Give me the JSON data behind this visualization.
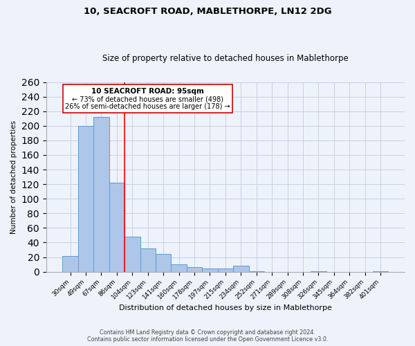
{
  "title": "10, SEACROFT ROAD, MABLETHORPE, LN12 2DG",
  "subtitle": "Size of property relative to detached houses in Mablethorpe",
  "xlabel": "Distribution of detached houses by size in Mablethorpe",
  "ylabel": "Number of detached properties",
  "categories": [
    "30sqm",
    "49sqm",
    "67sqm",
    "86sqm",
    "104sqm",
    "123sqm",
    "141sqm",
    "160sqm",
    "178sqm",
    "197sqm",
    "215sqm",
    "234sqm",
    "252sqm",
    "271sqm",
    "289sqm",
    "308sqm",
    "326sqm",
    "345sqm",
    "364sqm",
    "382sqm",
    "401sqm"
  ],
  "values": [
    21,
    200,
    212,
    122,
    48,
    32,
    24,
    10,
    6,
    4,
    4,
    8,
    1,
    0,
    0,
    0,
    1,
    0,
    0,
    0,
    1
  ],
  "bar_color": "#aec6e8",
  "bar_edge_color": "#5b9bd5",
  "bar_width": 1.0,
  "ylim": [
    0,
    260
  ],
  "yticks": [
    0,
    20,
    40,
    60,
    80,
    100,
    120,
    140,
    160,
    180,
    200,
    220,
    240,
    260
  ],
  "red_line_x": 3.5,
  "annotation_text_line1": "10 SEACROFT ROAD: 95sqm",
  "annotation_text_line2": "← 73% of detached houses are smaller (498)",
  "annotation_text_line3": "26% of semi-detached houses are larger (178) →",
  "footer_line1": "Contains HM Land Registry data © Crown copyright and database right 2024.",
  "footer_line2": "Contains public sector information licensed under the Open Government Licence v3.0.",
  "background_color": "#eef2fa",
  "grid_color": "#c5cfe8"
}
